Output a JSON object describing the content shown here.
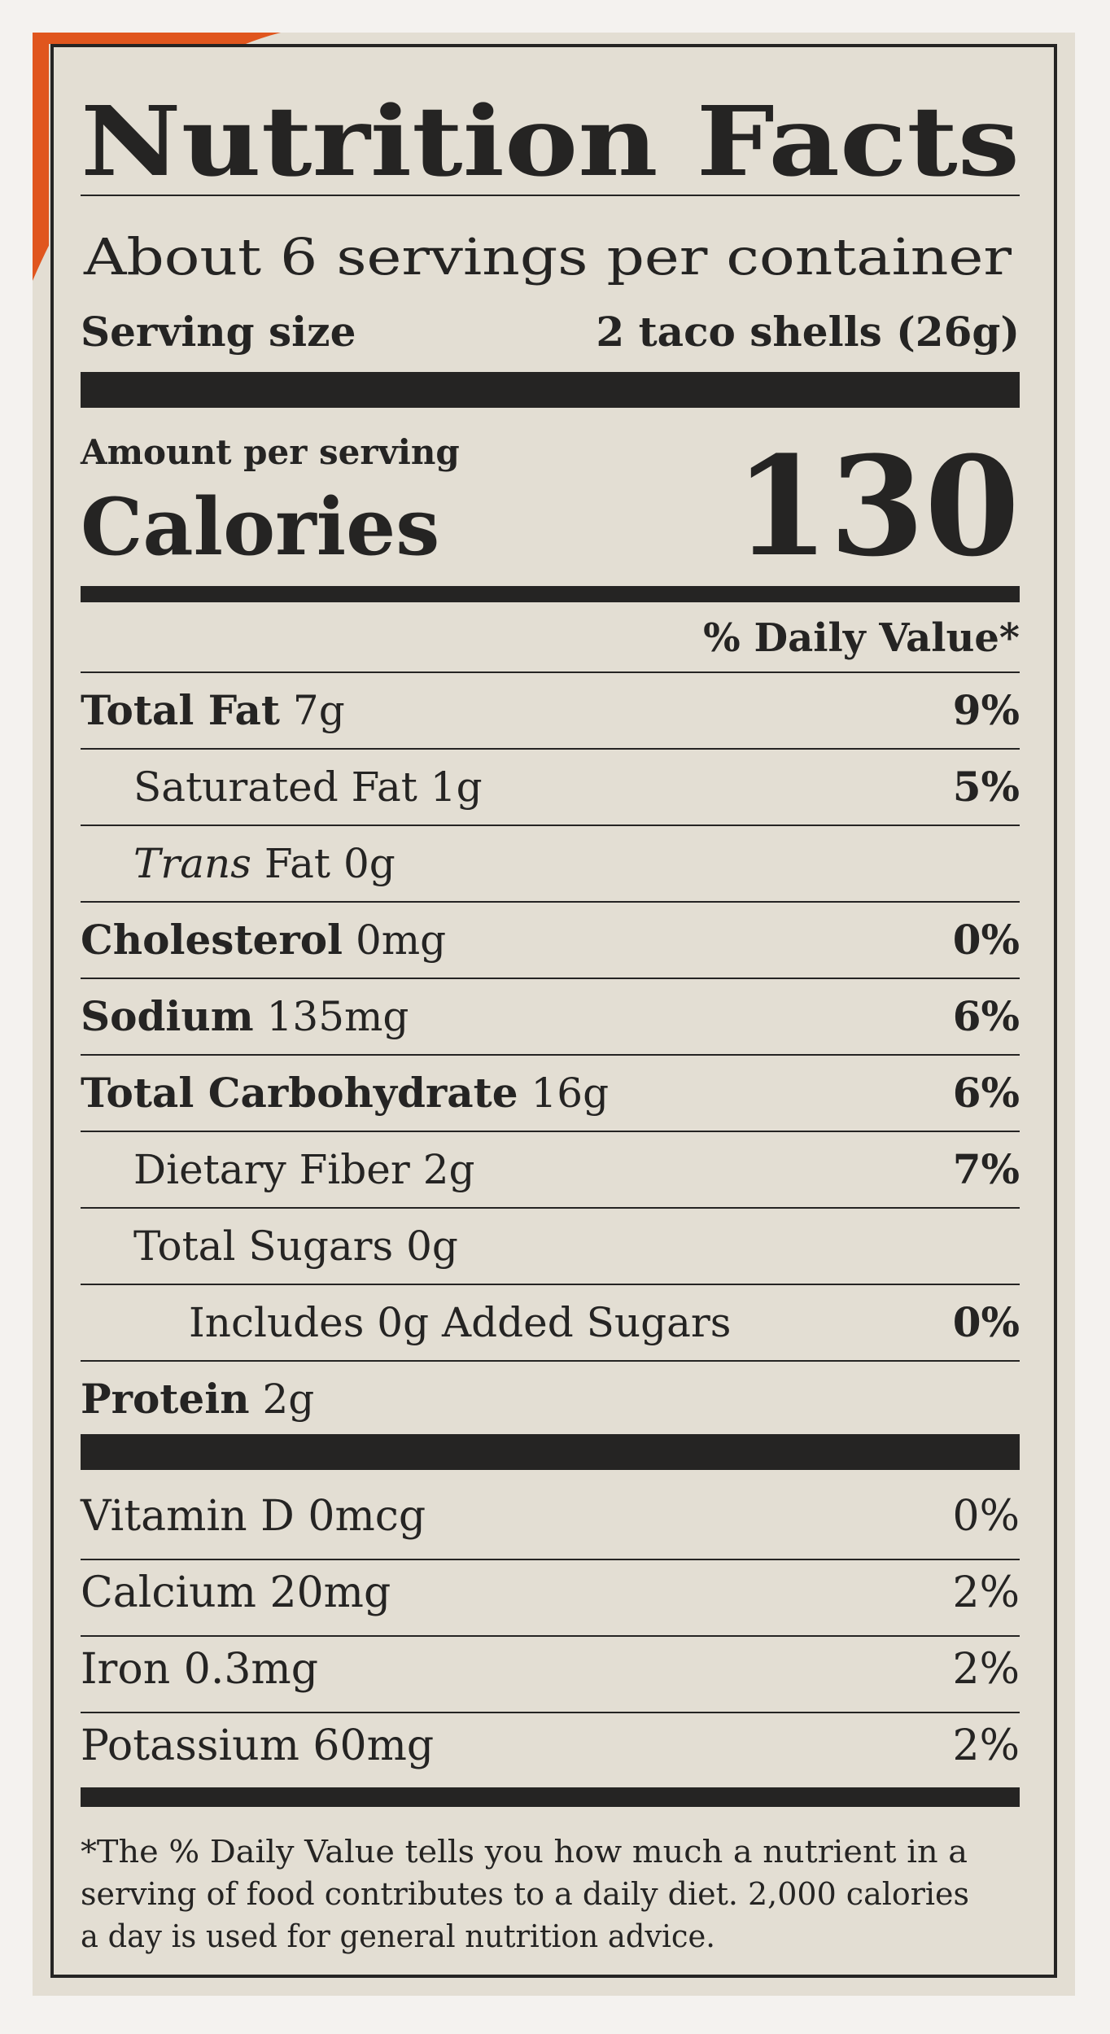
{
  "header": {
    "title": "Nutrition Facts",
    "servings": "About 6 servings per container",
    "serving_size_label": "Serving size",
    "serving_size_value": "2 taco shells (26g)"
  },
  "calories": {
    "amount_label": "Amount per serving",
    "label": "Calories",
    "value": "130"
  },
  "daily_value_header": "% Daily Value*",
  "nutrients": [
    {
      "name": "Total Fat",
      "amount": "7g",
      "dv": "9%",
      "sub": [
        {
          "name": "Saturated Fat",
          "amount": "1g",
          "dv": "5%"
        },
        {
          "italic": "Trans",
          "name": "Fat",
          "amount": "0g"
        }
      ]
    },
    {
      "name": "Cholesterol",
      "amount": "0mg",
      "dv": "0%"
    },
    {
      "name": "Sodium",
      "amount": "135mg",
      "dv": "6%"
    },
    {
      "name": "Total Carbohydrate",
      "amount": "16g",
      "dv": "6%",
      "sub": [
        {
          "name": "Dietary Fiber",
          "amount": "2g",
          "dv": "7%"
        },
        {
          "name": "Total Sugars",
          "amount": "0g",
          "sub": [
            {
              "name": "Includes 0g Added Sugars",
              "dv": "0%"
            }
          ]
        }
      ]
    },
    {
      "name": "Protein",
      "amount": "2g"
    }
  ],
  "vitamins": [
    {
      "name": "Vitamin D",
      "amount": "0mcg",
      "dv": "0%"
    },
    {
      "name": "Calcium",
      "amount": "20mg",
      "dv": "2%"
    },
    {
      "name": "Iron",
      "amount": "0.3mg",
      "dv": "2%"
    },
    {
      "name": "Potassium",
      "amount": "60mg",
      "dv": "2%"
    }
  ],
  "footnote": [
    "*The % Daily Value tells you how much a nutrient in a",
    "serving of food contributes to a daily diet. 2,000 calories",
    "a day is used for general nutrition advice."
  ]
}
